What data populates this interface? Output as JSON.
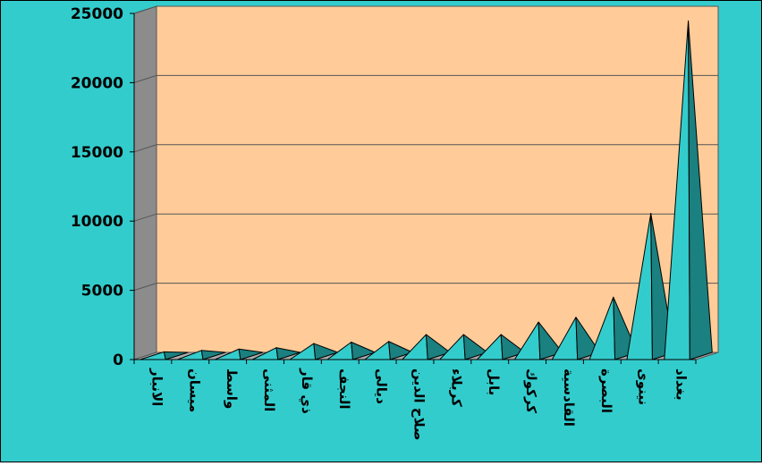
{
  "colors": {
    "outer_background": "#33cccc",
    "plot_background": "#ffcc99",
    "pyramid_light": "#33cccc",
    "pyramid_dark": "#1a8080",
    "floor": "#aaaaaa"
  },
  "chart_data": {
    "type": "bar",
    "bar_shape": "3d-pyramid",
    "title": "",
    "xlabel": "",
    "ylabel": "",
    "categories": [
      "الانبار",
      "ميسان",
      "واسط",
      "المثنى",
      "ذي قار",
      "النجف",
      "ديالى",
      "صلاح الدين",
      "كربلاء",
      "بابل",
      "كركوك",
      "القادسية",
      "البصرة",
      "نينوى",
      "بغداد"
    ],
    "values": [
      300,
      400,
      500,
      600,
      900,
      1000,
      1050,
      1550,
      1550,
      1550,
      2450,
      2800,
      4250,
      10300,
      24200
    ],
    "ylim": [
      0,
      25000
    ],
    "yticks": [
      "0",
      "5000",
      "10000",
      "15000",
      "20000",
      "25000"
    ],
    "grid": true,
    "legend": "none"
  }
}
